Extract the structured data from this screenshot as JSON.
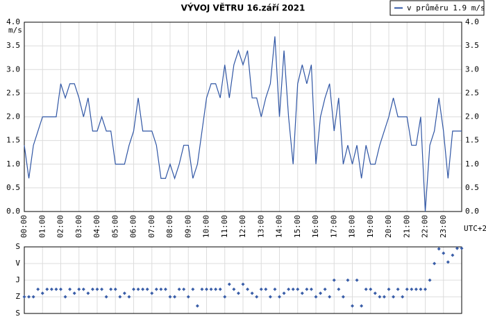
{
  "chart_data": [
    {
      "type": "line",
      "title": "VÝVOJ VĚTRU  16.září 2021",
      "ylabel": "m/s",
      "xlabel": "UTC+2",
      "x": [
        0,
        0.25,
        0.5,
        0.75,
        1,
        1.25,
        1.5,
        1.75,
        2,
        2.25,
        2.5,
        2.75,
        3,
        3.25,
        3.5,
        3.75,
        4,
        4.25,
        4.5,
        4.75,
        5,
        5.25,
        5.5,
        5.75,
        6,
        6.25,
        6.5,
        6.75,
        7,
        7.25,
        7.5,
        7.75,
        8,
        8.25,
        8.5,
        8.75,
        9,
        9.25,
        9.5,
        9.75,
        10,
        10.25,
        10.5,
        10.75,
        11,
        11.25,
        11.5,
        11.75,
        12,
        12.25,
        12.5,
        12.75,
        13,
        13.25,
        13.5,
        13.75,
        14,
        14.25,
        14.5,
        14.75,
        15,
        15.25,
        15.5,
        15.75,
        16,
        16.25,
        16.5,
        16.75,
        17,
        17.25,
        17.5,
        17.75,
        18,
        18.25,
        18.5,
        18.75,
        19,
        19.25,
        19.5,
        19.75,
        20,
        20.25,
        20.5,
        20.75,
        21,
        21.25,
        21.5,
        21.75,
        22,
        22.25,
        22.5,
        22.75,
        23,
        23.25,
        23.5,
        23.75,
        24
      ],
      "series": [
        {
          "name": "v průměru 1.9 m/s",
          "color": "#2f55a4",
          "values": [
            1.4,
            0.7,
            1.4,
            1.7,
            2.0,
            2.0,
            2.0,
            2.0,
            2.7,
            2.4,
            2.7,
            2.7,
            2.4,
            2.0,
            2.4,
            1.7,
            1.7,
            2.0,
            1.7,
            1.7,
            1.0,
            1.0,
            1.0,
            1.4,
            1.7,
            2.4,
            1.7,
            1.7,
            1.7,
            1.4,
            0.7,
            0.7,
            1.0,
            0.7,
            1.0,
            1.4,
            1.4,
            0.7,
            1.0,
            1.7,
            2.4,
            2.7,
            2.7,
            2.4,
            3.1,
            2.4,
            3.1,
            3.4,
            3.1,
            3.4,
            2.4,
            2.4,
            2.0,
            2.4,
            2.7,
            3.7,
            2.0,
            3.4,
            2.0,
            1.0,
            2.7,
            3.1,
            2.7,
            3.1,
            1.0,
            2.0,
            2.4,
            2.7,
            1.7,
            2.4,
            1.0,
            1.4,
            1.0,
            1.4,
            0.7,
            1.4,
            1.0,
            1.0,
            1.4,
            1.7,
            2.0,
            2.4,
            2.0,
            2.0,
            2.0,
            1.4,
            1.4,
            2.0,
            0.0,
            1.4,
            1.7,
            2.4,
            1.7,
            0.7,
            1.7,
            1.7,
            1.7
          ]
        }
      ],
      "xlim": [
        0,
        24
      ],
      "xticks": [
        {
          "value": 0,
          "label": "00:00"
        },
        {
          "value": 1,
          "label": "01:00"
        },
        {
          "value": 2,
          "label": "02:00"
        },
        {
          "value": 3,
          "label": "03:00"
        },
        {
          "value": 4,
          "label": "04:00"
        },
        {
          "value": 5,
          "label": "05:00"
        },
        {
          "value": 6,
          "label": "06:00"
        },
        {
          "value": 7,
          "label": "07:00"
        },
        {
          "value": 8,
          "label": "08:00"
        },
        {
          "value": 9,
          "label": "09:00"
        },
        {
          "value": 10,
          "label": "10:00"
        },
        {
          "value": 11,
          "label": "11:00"
        },
        {
          "value": 12,
          "label": "12:00"
        },
        {
          "value": 13,
          "label": "13:00"
        },
        {
          "value": 14,
          "label": "14:00"
        },
        {
          "value": 15,
          "label": "15:00"
        },
        {
          "value": 16,
          "label": "16:00"
        },
        {
          "value": 17,
          "label": "17:00"
        },
        {
          "value": 18,
          "label": "18:00"
        },
        {
          "value": 19,
          "label": "19:00"
        },
        {
          "value": 20,
          "label": "20:00"
        },
        {
          "value": 21,
          "label": "21:00"
        },
        {
          "value": 22,
          "label": "22:00"
        },
        {
          "value": 23,
          "label": "23:00"
        }
      ],
      "ylim": [
        0,
        4
      ],
      "yticks": [
        {
          "value": 0,
          "label": "0.0"
        },
        0.5,
        {
          "value": 1,
          "label": "1.0"
        },
        1.5,
        {
          "value": 2,
          "label": "2.0"
        },
        2.5,
        {
          "value": 3,
          "label": "3.0"
        },
        3.5,
        {
          "value": 4,
          "label": "4.0"
        }
      ],
      "grid": true,
      "legend": "top-right"
    },
    {
      "type": "scatter",
      "x": [
        0,
        0.25,
        0.5,
        0.75,
        1,
        1.25,
        1.5,
        1.75,
        2,
        2.25,
        2.5,
        2.75,
        3,
        3.25,
        3.5,
        3.75,
        4,
        4.25,
        4.5,
        4.75,
        5,
        5.25,
        5.5,
        5.75,
        6,
        6.25,
        6.5,
        6.75,
        7,
        7.25,
        7.5,
        7.75,
        8,
        8.25,
        8.5,
        8.75,
        9,
        9.25,
        9.5,
        9.75,
        10,
        10.25,
        10.5,
        10.75,
        11,
        11.25,
        11.5,
        11.75,
        12,
        12.25,
        12.5,
        12.75,
        13,
        13.25,
        13.5,
        13.75,
        14,
        14.25,
        14.5,
        14.75,
        15,
        15.25,
        15.5,
        15.75,
        16,
        16.25,
        16.5,
        16.75,
        17,
        17.25,
        17.5,
        17.75,
        18,
        18.25,
        18.5,
        18.75,
        19,
        19.25,
        19.5,
        19.75,
        20,
        20.25,
        20.5,
        20.75,
        21,
        21.25,
        21.5,
        21.75,
        22,
        22.25,
        22.5,
        22.75,
        23,
        23.25,
        23.5,
        23.75,
        24
      ],
      "series": [
        {
          "color": "#3a5ea8",
          "values": [
            270,
            270,
            270,
            229,
            251,
            229,
            229,
            229,
            229,
            270,
            229,
            251,
            229,
            229,
            251,
            229,
            229,
            229,
            270,
            229,
            229,
            270,
            251,
            270,
            229,
            229,
            229,
            229,
            251,
            229,
            229,
            229,
            270,
            270,
            229,
            229,
            270,
            229,
            319,
            229,
            229,
            229,
            229,
            229,
            270,
            202,
            229,
            251,
            202,
            229,
            251,
            270,
            229,
            229,
            270,
            229,
            270,
            251,
            229,
            229,
            229,
            251,
            229,
            229,
            270,
            251,
            229,
            270,
            180,
            229,
            270,
            180,
            319,
            180,
            319,
            229,
            229,
            251,
            270,
            270,
            229,
            270,
            229,
            270,
            229,
            229,
            229,
            229,
            229,
            180,
            90,
            11,
            34,
            82,
            45,
            8,
            8
          ]
        }
      ],
      "xlim": [
        0,
        24
      ],
      "ylim": [
        360,
        0
      ],
      "yticks": [
        {
          "value": 0,
          "label": "S"
        },
        {
          "value": 90,
          "label": "V"
        },
        {
          "value": 180,
          "label": "J"
        },
        {
          "value": 270,
          "label": "Z"
        },
        {
          "value": 360,
          "label": "S"
        }
      ],
      "grid": true
    }
  ]
}
